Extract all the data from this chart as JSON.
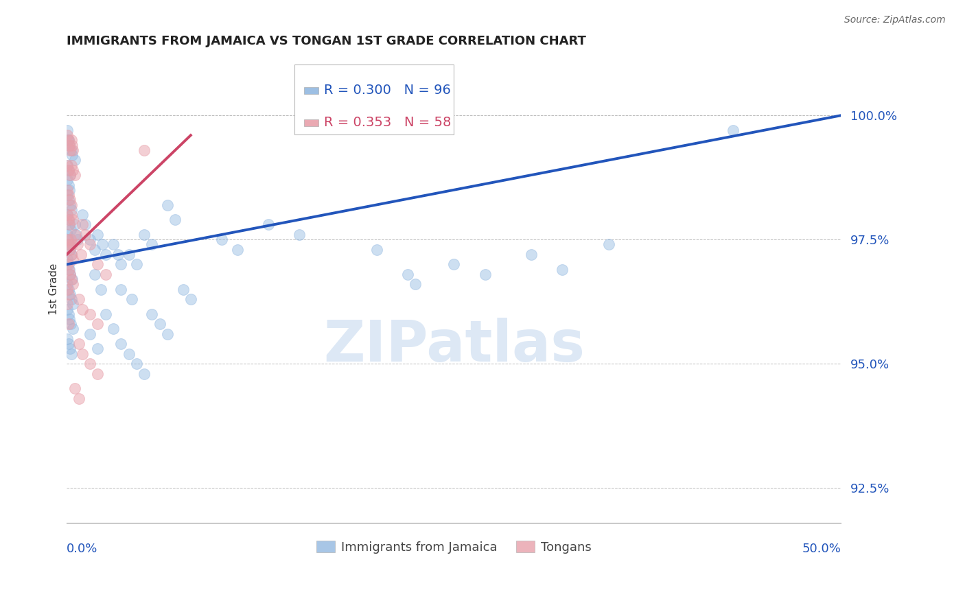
{
  "title": "IMMIGRANTS FROM JAMAICA VS TONGAN 1ST GRADE CORRELATION CHART",
  "source": "Source: ZipAtlas.com",
  "ylabel": "1st Grade",
  "ylabel_values": [
    92.5,
    95.0,
    97.5,
    100.0
  ],
  "xlim": [
    0.0,
    50.0
  ],
  "ylim": [
    91.8,
    101.2
  ],
  "R_blue": 0.3,
  "N_blue": 96,
  "R_pink": 0.353,
  "N_pink": 58,
  "blue_color": "#92b8e0",
  "pink_color": "#e8a0aa",
  "trendline_blue": "#2255bb",
  "trendline_pink": "#cc4466",
  "legend1_label": "Immigrants from Jamaica",
  "legend2_label": "Tongans",
  "blue_trendline_x": [
    0.0,
    50.0
  ],
  "blue_trendline_y": [
    97.0,
    100.0
  ],
  "pink_trendline_x": [
    0.0,
    8.0
  ],
  "pink_trendline_y": [
    97.2,
    99.6
  ],
  "blue_scatter": [
    [
      0.05,
      99.7
    ],
    [
      0.08,
      99.5
    ],
    [
      0.12,
      99.5
    ],
    [
      0.18,
      99.4
    ],
    [
      0.3,
      99.3
    ],
    [
      0.35,
      99.2
    ],
    [
      0.5,
      99.1
    ],
    [
      0.05,
      99.0
    ],
    [
      0.1,
      98.9
    ],
    [
      0.2,
      98.8
    ],
    [
      0.05,
      98.7
    ],
    [
      0.1,
      98.6
    ],
    [
      0.15,
      98.5
    ],
    [
      0.05,
      98.4
    ],
    [
      0.1,
      98.3
    ],
    [
      0.2,
      98.2
    ],
    [
      0.3,
      98.1
    ],
    [
      0.05,
      98.0
    ],
    [
      0.1,
      97.9
    ],
    [
      0.15,
      97.8
    ],
    [
      0.25,
      97.7
    ],
    [
      0.05,
      97.6
    ],
    [
      0.08,
      97.5
    ],
    [
      0.15,
      97.4
    ],
    [
      0.2,
      97.3
    ],
    [
      0.3,
      97.2
    ],
    [
      0.05,
      97.1
    ],
    [
      0.1,
      97.0
    ],
    [
      0.15,
      96.9
    ],
    [
      0.2,
      96.8
    ],
    [
      0.35,
      96.7
    ],
    [
      0.05,
      96.6
    ],
    [
      0.1,
      96.5
    ],
    [
      0.2,
      96.4
    ],
    [
      0.3,
      96.3
    ],
    [
      0.4,
      96.2
    ],
    [
      0.05,
      96.1
    ],
    [
      0.1,
      96.0
    ],
    [
      0.15,
      95.9
    ],
    [
      0.25,
      95.8
    ],
    [
      0.4,
      95.7
    ],
    [
      0.05,
      95.5
    ],
    [
      0.1,
      95.4
    ],
    [
      0.2,
      95.3
    ],
    [
      0.3,
      95.2
    ],
    [
      0.5,
      97.8
    ],
    [
      0.6,
      97.6
    ],
    [
      0.7,
      97.5
    ],
    [
      1.0,
      98.0
    ],
    [
      1.2,
      97.8
    ],
    [
      1.5,
      97.5
    ],
    [
      1.8,
      97.3
    ],
    [
      2.0,
      97.6
    ],
    [
      2.3,
      97.4
    ],
    [
      2.5,
      97.2
    ],
    [
      3.0,
      97.4
    ],
    [
      3.3,
      97.2
    ],
    [
      3.5,
      97.0
    ],
    [
      4.0,
      97.2
    ],
    [
      4.5,
      97.0
    ],
    [
      5.0,
      97.6
    ],
    [
      5.5,
      97.4
    ],
    [
      6.5,
      98.2
    ],
    [
      7.0,
      97.9
    ],
    [
      3.5,
      96.5
    ],
    [
      4.2,
      96.3
    ],
    [
      5.5,
      96.0
    ],
    [
      6.0,
      95.8
    ],
    [
      6.5,
      95.6
    ],
    [
      7.5,
      96.5
    ],
    [
      8.0,
      96.3
    ],
    [
      10.0,
      97.5
    ],
    [
      11.0,
      97.3
    ],
    [
      13.0,
      97.8
    ],
    [
      15.0,
      97.6
    ],
    [
      20.0,
      97.3
    ],
    [
      22.0,
      96.8
    ],
    [
      22.5,
      96.6
    ],
    [
      25.0,
      97.0
    ],
    [
      27.0,
      96.8
    ],
    [
      30.0,
      97.2
    ],
    [
      32.0,
      96.9
    ],
    [
      35.0,
      97.4
    ],
    [
      2.5,
      96.0
    ],
    [
      3.0,
      95.7
    ],
    [
      3.5,
      95.4
    ],
    [
      4.0,
      95.2
    ],
    [
      4.5,
      95.0
    ],
    [
      5.0,
      94.8
    ],
    [
      1.5,
      95.6
    ],
    [
      2.0,
      95.3
    ],
    [
      43.0,
      99.7
    ],
    [
      1.8,
      96.8
    ],
    [
      2.2,
      96.5
    ]
  ],
  "pink_scatter": [
    [
      0.05,
      99.6
    ],
    [
      0.1,
      99.5
    ],
    [
      0.15,
      99.4
    ],
    [
      0.2,
      99.3
    ],
    [
      0.3,
      99.5
    ],
    [
      0.35,
      99.4
    ],
    [
      0.4,
      99.3
    ],
    [
      0.05,
      99.0
    ],
    [
      0.12,
      98.9
    ],
    [
      0.2,
      98.8
    ],
    [
      0.3,
      99.0
    ],
    [
      0.4,
      98.9
    ],
    [
      0.5,
      98.8
    ],
    [
      0.05,
      98.5
    ],
    [
      0.12,
      98.4
    ],
    [
      0.2,
      98.3
    ],
    [
      0.3,
      98.2
    ],
    [
      0.05,
      98.0
    ],
    [
      0.1,
      97.9
    ],
    [
      0.18,
      97.8
    ],
    [
      0.3,
      98.0
    ],
    [
      0.4,
      97.9
    ],
    [
      0.05,
      97.5
    ],
    [
      0.1,
      97.4
    ],
    [
      0.15,
      97.3
    ],
    [
      0.25,
      97.5
    ],
    [
      0.35,
      97.4
    ],
    [
      0.05,
      97.0
    ],
    [
      0.1,
      96.9
    ],
    [
      0.2,
      96.8
    ],
    [
      0.05,
      96.5
    ],
    [
      0.1,
      96.4
    ],
    [
      0.3,
      97.2
    ],
    [
      0.4,
      97.1
    ],
    [
      0.3,
      96.7
    ],
    [
      0.4,
      96.6
    ],
    [
      0.5,
      97.6
    ],
    [
      0.7,
      97.4
    ],
    [
      0.9,
      97.2
    ],
    [
      1.0,
      97.8
    ],
    [
      1.2,
      97.6
    ],
    [
      1.5,
      97.4
    ],
    [
      2.0,
      97.0
    ],
    [
      2.5,
      96.8
    ],
    [
      0.8,
      96.3
    ],
    [
      1.0,
      96.1
    ],
    [
      1.5,
      96.0
    ],
    [
      2.0,
      95.8
    ],
    [
      0.8,
      95.4
    ],
    [
      1.0,
      95.2
    ],
    [
      1.5,
      95.0
    ],
    [
      2.0,
      94.8
    ],
    [
      0.5,
      94.5
    ],
    [
      0.8,
      94.3
    ],
    [
      5.0,
      99.3
    ],
    [
      0.05,
      96.2
    ],
    [
      0.1,
      95.8
    ]
  ]
}
